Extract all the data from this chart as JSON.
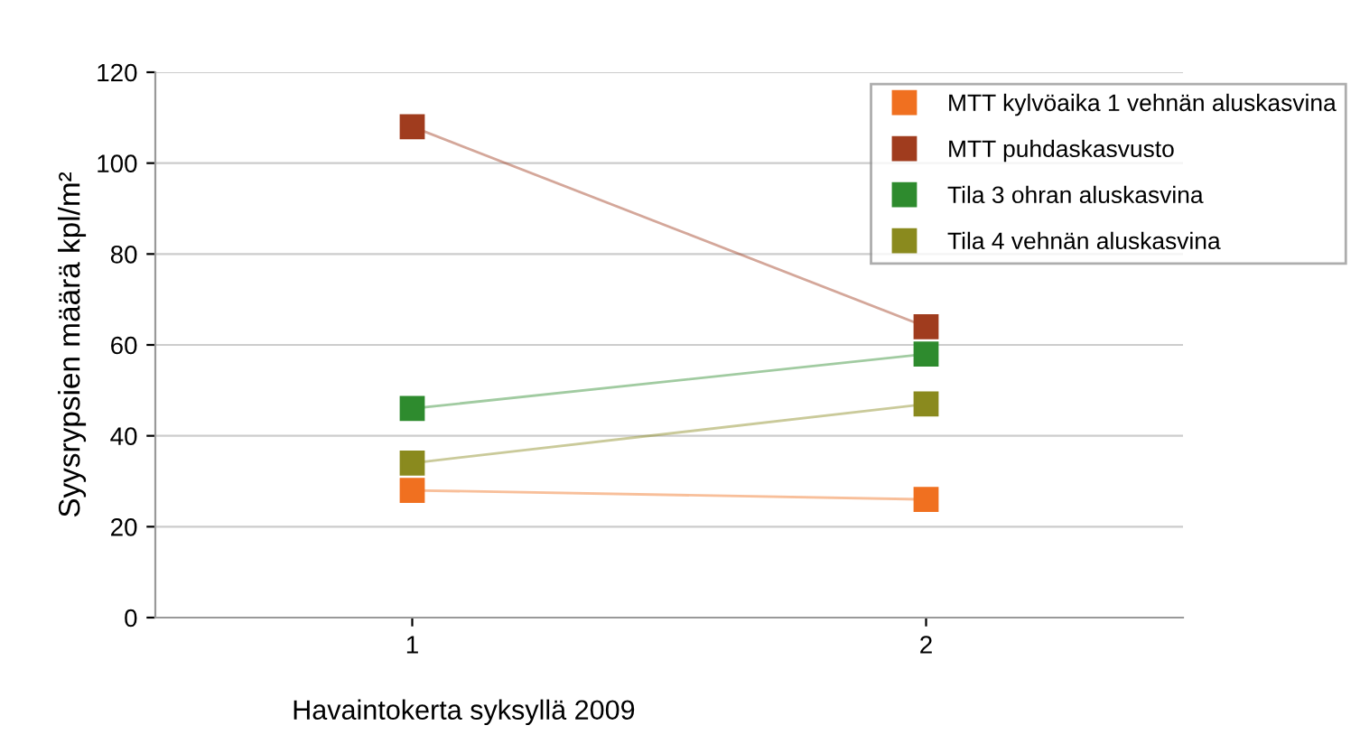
{
  "chart_data": {
    "type": "line",
    "xlabel": "Havaintokerta syksyllä 2009",
    "ylabel": "Syysrypsien määrä kpl/m²",
    "categories": [
      "1",
      "2"
    ],
    "series": [
      {
        "name": "MTT kylvöaika 1 vehnän aluskasvina",
        "color": "#f07020",
        "values": [
          28,
          26
        ]
      },
      {
        "name": "MTT puhdaskasvusto",
        "color": "#a03c1e",
        "values": [
          108,
          64
        ]
      },
      {
        "name": "Tila 3 ohran aluskasvina",
        "color": "#2e8b2e",
        "values": [
          46,
          58
        ]
      },
      {
        "name": "Tila 4 vehnän aluskasvina",
        "color": "#8a8a1e",
        "values": [
          34,
          47
        ]
      }
    ],
    "ylim": [
      0,
      120
    ],
    "yticks": [
      0,
      20,
      40,
      60,
      80,
      100,
      120
    ],
    "grid": "y",
    "legend": "top right",
    "marker": "square",
    "line_style": "solid"
  }
}
